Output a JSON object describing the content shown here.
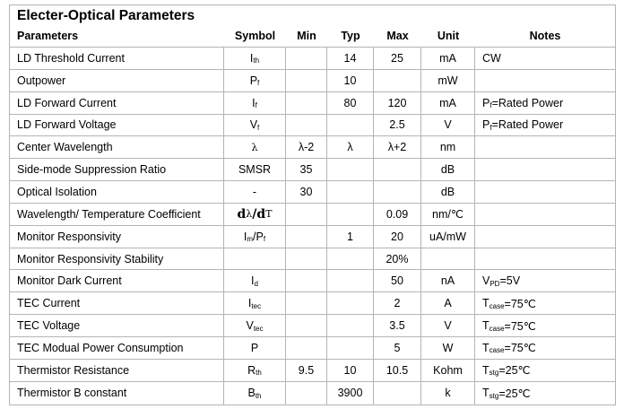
{
  "title": "Electer-Optical Parameters",
  "headers": [
    "Parameters",
    "Symbol",
    "Min",
    "Typ",
    "Max",
    "Unit",
    "Notes"
  ],
  "rows": [
    {
      "param": "LD Threshold Current",
      "symbol": [
        {
          "t": "I"
        },
        {
          "t": "th",
          "sub": true
        }
      ],
      "min": "",
      "typ": "14",
      "max": "25",
      "unit": "mA",
      "notes": [
        {
          "t": "CW"
        }
      ]
    },
    {
      "param": "Outpower",
      "symbol": [
        {
          "t": "P"
        },
        {
          "t": "f",
          "sub": true
        }
      ],
      "min": "",
      "typ": "10",
      "max": "",
      "unit": "mW",
      "notes": []
    },
    {
      "param": "LD Forward Current",
      "symbol": [
        {
          "t": "I"
        },
        {
          "t": "f",
          "sub": true
        }
      ],
      "min": "",
      "typ": "80",
      "max": "120",
      "unit": "mA",
      "notes": [
        {
          "t": "P"
        },
        {
          "t": "f",
          "sub": true
        },
        {
          "t": "=Rated Power"
        }
      ]
    },
    {
      "param": "LD Forward Voltage",
      "symbol": [
        {
          "t": "V"
        },
        {
          "t": "f",
          "sub": true
        }
      ],
      "min": "",
      "typ": "",
      "max": "2.5",
      "unit": "V",
      "notes": [
        {
          "t": "P"
        },
        {
          "t": "f",
          "sub": true
        },
        {
          "t": "=Rated Power"
        }
      ]
    },
    {
      "param": "Center Wavelength",
      "symbol": [
        {
          "t": "λ",
          "serif": true
        }
      ],
      "min": "λ-2",
      "typ": "λ",
      "max": "λ+2",
      "unit": "nm",
      "notes": []
    },
    {
      "param": "Side-mode Suppression Ratio",
      "symbol": [
        {
          "t": "SMSR"
        }
      ],
      "min": "35",
      "typ": "",
      "max": "",
      "unit": "dB",
      "notes": []
    },
    {
      "param": "Optical Isolation",
      "symbol": [
        {
          "t": "-"
        }
      ],
      "min": "30",
      "typ": "",
      "max": "",
      "unit": "dB",
      "notes": []
    },
    {
      "param": "Wavelength/ Temperature Coefficient",
      "symbol": [
        {
          "t": "d",
          "serif": true,
          "bold": true
        },
        {
          "t": "λ",
          "serif": true
        },
        {
          "t": "/",
          "serif": true,
          "bold": true
        },
        {
          "t": "d",
          "serif": true,
          "bold": true
        },
        {
          "t": "T",
          "serif": true
        }
      ],
      "min": "",
      "typ": "",
      "max": "0.09",
      "unit": "nm/℃",
      "notes": []
    },
    {
      "param": "Monitor Responsivity",
      "symbol": [
        {
          "t": "I"
        },
        {
          "t": "m",
          "sub": true
        },
        {
          "t": "/P"
        },
        {
          "t": "f",
          "sub": true
        }
      ],
      "min": "",
      "typ": "1",
      "max": "20",
      "unit": "uA/mW",
      "notes": []
    },
    {
      "param": "Monitor Responsivity Stability",
      "symbol": [],
      "min": "",
      "typ": "",
      "max": "20%",
      "unit": "",
      "notes": []
    },
    {
      "param": "Monitor Dark Current",
      "symbol": [
        {
          "t": "I"
        },
        {
          "t": "d",
          "sub": true
        }
      ],
      "min": "",
      "typ": "",
      "max": "50",
      "unit": "nA",
      "notes": [
        {
          "t": "V"
        },
        {
          "t": "PD",
          "sub": true
        },
        {
          "t": "=5V"
        }
      ]
    },
    {
      "param": "TEC Current",
      "symbol": [
        {
          "t": "I"
        },
        {
          "t": "tec",
          "sub": true
        }
      ],
      "min": "",
      "typ": "",
      "max": "2",
      "unit": "A",
      "notes": [
        {
          "t": "T"
        },
        {
          "t": "case",
          "sub": true
        },
        {
          "t": "=75℃"
        }
      ]
    },
    {
      "param": "TEC Voltage",
      "symbol": [
        {
          "t": "V"
        },
        {
          "t": "tec",
          "sub": true
        }
      ],
      "min": "",
      "typ": "",
      "max": "3.5",
      "unit": "V",
      "notes": [
        {
          "t": "T"
        },
        {
          "t": "case",
          "sub": true
        },
        {
          "t": "=75℃"
        }
      ]
    },
    {
      "param": "TEC Modual Power Consumption",
      "symbol": [
        {
          "t": "P"
        }
      ],
      "min": "",
      "typ": "",
      "max": "5",
      "unit": "W",
      "notes": [
        {
          "t": "T"
        },
        {
          "t": "case",
          "sub": true
        },
        {
          "t": "=75℃"
        }
      ]
    },
    {
      "param": "Thermistor Resistance",
      "symbol": [
        {
          "t": "R"
        },
        {
          "t": "th",
          "sub": true
        }
      ],
      "min": "9.5",
      "typ": "10",
      "max": "10.5",
      "unit": "Kohm",
      "notes": [
        {
          "t": "T"
        },
        {
          "t": "stg",
          "sub": true
        },
        {
          "t": "=25℃"
        }
      ]
    },
    {
      "param": "Thermistor B constant",
      "symbol": [
        {
          "t": "B"
        },
        {
          "t": "th",
          "sub": true
        }
      ],
      "min": "",
      "typ": "3900",
      "max": "",
      "unit": "k",
      "notes": [
        {
          "t": "T"
        },
        {
          "t": "stg",
          "sub": true
        },
        {
          "t": "=25℃"
        }
      ]
    }
  ]
}
